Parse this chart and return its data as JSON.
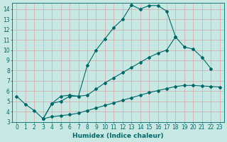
{
  "title": "",
  "xlabel": "Humidex (Indice chaleur)",
  "xlim": [
    -0.5,
    23.5
  ],
  "ylim": [
    3,
    14.6
  ],
  "bg_color": "#c8e8e4",
  "grid_color": "#d4a8a8",
  "line_color": "#006868",
  "line1_x": [
    0,
    1,
    2,
    3,
    4,
    5,
    6,
    7,
    8,
    9,
    10,
    11,
    12,
    13,
    14,
    15,
    16,
    17,
    18,
    19,
    20
  ],
  "line1_y": [
    5.5,
    4.7,
    4.1,
    3.3,
    4.8,
    5.5,
    5.6,
    5.5,
    8.5,
    10.0,
    11.1,
    12.2,
    13.0,
    14.4,
    14.0,
    14.35,
    14.35,
    13.8,
    11.3,
    null,
    null
  ],
  "line2_x": [
    3,
    4,
    5,
    6,
    7,
    8,
    9,
    10,
    11,
    12,
    13,
    14,
    15,
    16,
    17,
    18,
    19,
    20,
    21,
    22
  ],
  "line2_y": [
    3.3,
    4.8,
    5.0,
    5.5,
    5.5,
    5.6,
    6.2,
    6.8,
    7.3,
    7.8,
    8.3,
    8.8,
    9.3,
    9.7,
    10.0,
    11.3,
    10.3,
    10.1,
    9.3,
    8.2
  ],
  "line3_x": [
    3,
    4,
    5,
    6,
    7,
    8,
    9,
    10,
    11,
    12,
    13,
    14,
    15,
    16,
    17,
    18,
    19,
    20,
    21,
    22,
    23
  ],
  "line3_y": [
    3.3,
    3.5,
    3.6,
    3.7,
    3.85,
    4.1,
    4.35,
    4.6,
    4.85,
    5.1,
    5.35,
    5.6,
    5.85,
    6.05,
    6.25,
    6.45,
    6.55,
    6.55,
    6.5,
    6.45,
    6.4
  ],
  "xticks": [
    0,
    1,
    2,
    3,
    4,
    5,
    6,
    7,
    8,
    9,
    10,
    11,
    12,
    13,
    14,
    15,
    16,
    17,
    18,
    19,
    20,
    21,
    22,
    23
  ],
  "yticks": [
    3,
    4,
    5,
    6,
    7,
    8,
    9,
    10,
    11,
    12,
    13,
    14
  ],
  "tick_fontsize": 5.5,
  "xlabel_fontsize": 6.5
}
